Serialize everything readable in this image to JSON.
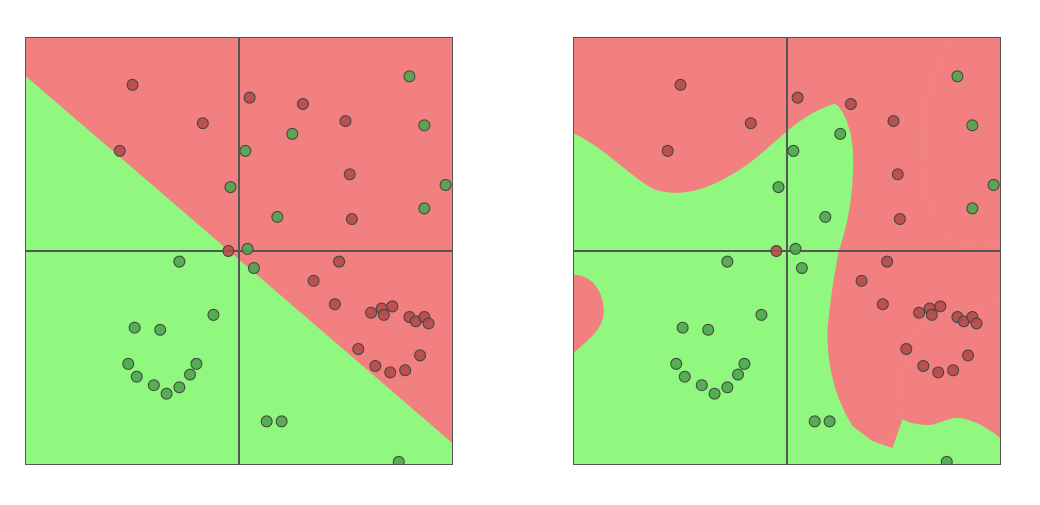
{
  "colors": {
    "class_red": "#f28080",
    "class_green": "#90f77f",
    "point_red": "#b44a4a",
    "point_green": "#4ca64c",
    "point_stroke": "#444444",
    "axis_line": "#555555"
  },
  "chart_data": [
    {
      "type": "scatter",
      "title": "",
      "xlim": [
        -1,
        1
      ],
      "ylim": [
        -1,
        1
      ],
      "grid": false,
      "axes_through_origin": true,
      "decision_boundary": "linear",
      "boundary_line": {
        "x1": -1.0,
        "y1": 0.82,
        "x2": 1.0,
        "y2": -0.9
      },
      "red_region_side": "above",
      "series": [
        {
          "class": "red",
          "points": [
            [
              -0.5,
              0.78
            ],
            [
              -0.17,
              0.6
            ],
            [
              -0.56,
              0.47
            ],
            [
              0.05,
              0.72
            ],
            [
              0.3,
              0.69
            ],
            [
              0.5,
              0.61
            ],
            [
              0.52,
              0.36
            ],
            [
              0.53,
              0.15
            ],
            [
              0.47,
              -0.05
            ],
            [
              0.35,
              -0.14
            ],
            [
              0.45,
              -0.25
            ],
            [
              0.62,
              -0.29
            ],
            [
              0.67,
              -0.27
            ],
            [
              0.72,
              -0.26
            ],
            [
              0.68,
              -0.3
            ],
            [
              0.8,
              -0.31
            ],
            [
              0.83,
              -0.33
            ],
            [
              0.87,
              -0.31
            ],
            [
              0.89,
              -0.34
            ],
            [
              0.56,
              -0.46
            ],
            [
              0.64,
              -0.54
            ],
            [
              0.71,
              -0.57
            ],
            [
              0.78,
              -0.56
            ],
            [
              0.85,
              -0.49
            ],
            [
              -0.05,
              0.0
            ]
          ]
        },
        {
          "class": "green",
          "points": [
            [
              0.8,
              0.82
            ],
            [
              0.87,
              0.59
            ],
            [
              0.97,
              0.31
            ],
            [
              0.87,
              0.2
            ],
            [
              0.25,
              0.55
            ],
            [
              0.03,
              0.47
            ],
            [
              -0.04,
              0.3
            ],
            [
              0.18,
              0.16
            ],
            [
              0.04,
              0.01
            ],
            [
              0.07,
              -0.08
            ],
            [
              -0.28,
              -0.05
            ],
            [
              -0.49,
              -0.36
            ],
            [
              -0.37,
              -0.37
            ],
            [
              -0.12,
              -0.3
            ],
            [
              -0.52,
              -0.53
            ],
            [
              -0.48,
              -0.59
            ],
            [
              -0.4,
              -0.63
            ],
            [
              -0.34,
              -0.67
            ],
            [
              -0.28,
              -0.64
            ],
            [
              -0.23,
              -0.58
            ],
            [
              -0.2,
              -0.53
            ],
            [
              0.13,
              -0.8
            ],
            [
              0.2,
              -0.8
            ],
            [
              0.75,
              -0.99
            ]
          ]
        }
      ]
    },
    {
      "type": "scatter",
      "title": "",
      "xlim": [
        -1,
        1
      ],
      "ylim": [
        -1,
        1
      ],
      "grid": false,
      "axes_through_origin": true,
      "decision_boundary": "nonlinear",
      "series": [
        {
          "class": "red",
          "points": [
            [
              -0.5,
              0.78
            ],
            [
              -0.17,
              0.6
            ],
            [
              -0.56,
              0.47
            ],
            [
              0.05,
              0.72
            ],
            [
              0.3,
              0.69
            ],
            [
              0.5,
              0.61
            ],
            [
              0.52,
              0.36
            ],
            [
              0.53,
              0.15
            ],
            [
              0.47,
              -0.05
            ],
            [
              0.35,
              -0.14
            ],
            [
              0.45,
              -0.25
            ],
            [
              0.62,
              -0.29
            ],
            [
              0.67,
              -0.27
            ],
            [
              0.72,
              -0.26
            ],
            [
              0.68,
              -0.3
            ],
            [
              0.8,
              -0.31
            ],
            [
              0.83,
              -0.33
            ],
            [
              0.87,
              -0.31
            ],
            [
              0.89,
              -0.34
            ],
            [
              0.56,
              -0.46
            ],
            [
              0.64,
              -0.54
            ],
            [
              0.71,
              -0.57
            ],
            [
              0.78,
              -0.56
            ],
            [
              0.85,
              -0.49
            ],
            [
              -0.05,
              0.0
            ]
          ]
        },
        {
          "class": "green",
          "points": [
            [
              0.8,
              0.82
            ],
            [
              0.87,
              0.59
            ],
            [
              0.97,
              0.31
            ],
            [
              0.87,
              0.2
            ],
            [
              0.25,
              0.55
            ],
            [
              0.03,
              0.47
            ],
            [
              -0.04,
              0.3
            ],
            [
              0.18,
              0.16
            ],
            [
              0.04,
              0.01
            ],
            [
              0.07,
              -0.08
            ],
            [
              -0.28,
              -0.05
            ],
            [
              -0.49,
              -0.36
            ],
            [
              -0.37,
              -0.37
            ],
            [
              -0.12,
              -0.3
            ],
            [
              -0.52,
              -0.53
            ],
            [
              -0.48,
              -0.59
            ],
            [
              -0.4,
              -0.63
            ],
            [
              -0.34,
              -0.67
            ],
            [
              -0.28,
              -0.64
            ],
            [
              -0.23,
              -0.58
            ],
            [
              -0.2,
              -0.53
            ],
            [
              0.13,
              -0.8
            ],
            [
              0.2,
              -0.8
            ],
            [
              0.75,
              -0.99
            ]
          ]
        }
      ]
    }
  ]
}
